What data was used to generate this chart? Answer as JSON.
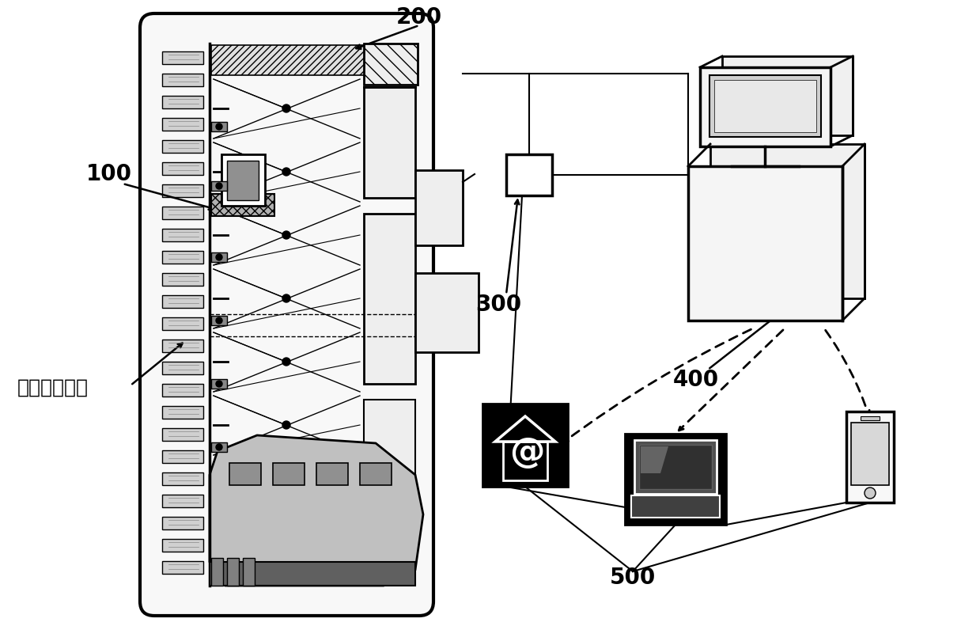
{
  "bg_color": "#ffffff",
  "label_100": "100",
  "label_200": "200",
  "label_300": "300",
  "label_400": "400",
  "label_500": "500",
  "label_wireless": "无线传感信号",
  "figsize": [
    12.39,
    7.91
  ],
  "dpi": 100
}
